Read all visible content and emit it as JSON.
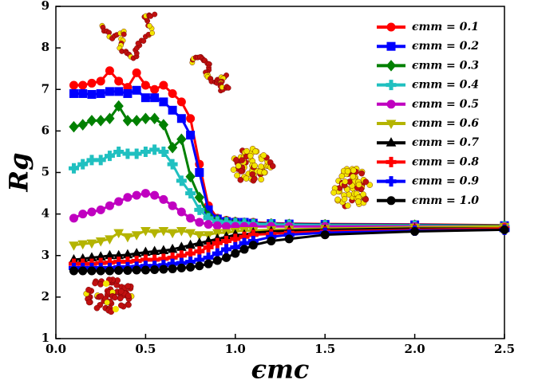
{
  "chart_data": {
    "type": "line",
    "x_label": "ϵmc",
    "y_label": "Rg",
    "x": [
      0.1,
      0.15,
      0.2,
      0.25,
      0.3,
      0.35,
      0.4,
      0.45,
      0.5,
      0.55,
      0.6,
      0.65,
      0.7,
      0.75,
      0.8,
      0.85,
      0.9,
      0.95,
      1.0,
      1.05,
      1.1,
      1.2,
      1.3,
      1.5,
      2.0,
      2.5
    ],
    "xlim": [
      0,
      2.5
    ],
    "ylim": [
      1,
      9
    ],
    "xticks": [
      {
        "value": 0,
        "label": "0.0"
      },
      0.5,
      {
        "value": 1,
        "label": "1.0"
      },
      1.5,
      {
        "value": 2,
        "label": "2.0"
      },
      2.5
    ],
    "yticks": [
      1,
      2,
      3,
      4,
      5,
      6,
      7,
      8,
      9
    ],
    "legend_position": "upper right",
    "series": [
      {
        "name": "ϵmm = 0.1",
        "color": "#ff0000",
        "marker": "circle",
        "values": [
          7.1,
          7.1,
          7.15,
          7.2,
          7.45,
          7.2,
          7.05,
          7.4,
          7.1,
          7.0,
          7.1,
          6.9,
          6.7,
          6.3,
          5.2,
          4.2,
          3.9,
          3.85,
          3.82,
          3.8,
          3.8,
          3.78,
          3.77,
          3.76,
          3.75,
          3.73
        ]
      },
      {
        "name": "ϵmm = 0.2",
        "color": "#0000ff",
        "marker": "square",
        "values": [
          6.9,
          6.9,
          6.88,
          6.9,
          6.95,
          6.95,
          6.9,
          6.98,
          6.8,
          6.8,
          6.7,
          6.5,
          6.3,
          5.9,
          5.0,
          4.1,
          3.88,
          3.82,
          3.8,
          3.8,
          3.78,
          3.77,
          3.76,
          3.75,
          3.74,
          3.72
        ]
      },
      {
        "name": "ϵmm = 0.3",
        "color": "#008000",
        "marker": "diamond",
        "values": [
          6.1,
          6.15,
          6.25,
          6.25,
          6.3,
          6.6,
          6.25,
          6.25,
          6.3,
          6.3,
          6.15,
          5.6,
          5.8,
          4.9,
          4.4,
          3.95,
          3.85,
          3.82,
          3.8,
          3.78,
          3.77,
          3.76,
          3.75,
          3.74,
          3.73,
          3.72
        ]
      },
      {
        "name": "ϵmm = 0.4",
        "color": "#20c0c0",
        "marker": "plus",
        "values": [
          5.1,
          5.2,
          5.3,
          5.3,
          5.4,
          5.5,
          5.45,
          5.45,
          5.5,
          5.55,
          5.5,
          5.2,
          4.8,
          4.5,
          4.1,
          3.9,
          3.82,
          3.8,
          3.78,
          3.77,
          3.76,
          3.75,
          3.74,
          3.73,
          3.72,
          3.7
        ]
      },
      {
        "name": "ϵmm = 0.5",
        "color": "#c000c0",
        "marker": "circle",
        "values": [
          3.9,
          4.0,
          4.05,
          4.1,
          4.2,
          4.3,
          4.4,
          4.45,
          4.5,
          4.45,
          4.35,
          4.2,
          4.05,
          3.9,
          3.8,
          3.75,
          3.72,
          3.7,
          3.7,
          3.7,
          3.7,
          3.7,
          3.7,
          3.7,
          3.7,
          3.7
        ]
      },
      {
        "name": "ϵmm = 0.6",
        "color": "#b4b400",
        "marker": "triangle-down",
        "values": [
          3.25,
          3.28,
          3.3,
          3.35,
          3.4,
          3.55,
          3.45,
          3.5,
          3.6,
          3.55,
          3.6,
          3.55,
          3.6,
          3.55,
          3.5,
          3.5,
          3.55,
          3.55,
          3.58,
          3.6,
          3.6,
          3.62,
          3.63,
          3.65,
          3.68,
          3.7
        ]
      },
      {
        "name": "ϵmm = 0.7",
        "color": "#000000",
        "marker": "triangle-up",
        "values": [
          2.9,
          2.92,
          2.95,
          2.97,
          3.0,
          3.0,
          3.02,
          3.05,
          3.08,
          3.1,
          3.12,
          3.15,
          3.2,
          3.25,
          3.3,
          3.35,
          3.4,
          3.45,
          3.5,
          3.5,
          3.55,
          3.58,
          3.6,
          3.62,
          3.65,
          3.65
        ]
      },
      {
        "name": "ϵmm = 0.8",
        "color": "#ff0000",
        "marker": "plus",
        "values": [
          2.8,
          2.8,
          2.8,
          2.82,
          2.83,
          2.85,
          2.85,
          2.87,
          2.9,
          2.9,
          2.92,
          2.95,
          3.0,
          3.05,
          3.1,
          3.2,
          3.3,
          3.35,
          3.4,
          3.45,
          3.5,
          3.52,
          3.55,
          3.58,
          3.62,
          3.65
        ]
      },
      {
        "name": "ϵmm = 0.9",
        "color": "#0000ff",
        "marker": "plus",
        "values": [
          2.7,
          2.7,
          2.7,
          2.7,
          2.7,
          2.72,
          2.72,
          2.73,
          2.75,
          2.75,
          2.77,
          2.8,
          2.82,
          2.85,
          2.9,
          2.95,
          3.05,
          3.15,
          3.2,
          3.3,
          3.35,
          3.45,
          3.5,
          3.55,
          3.6,
          3.62
        ]
      },
      {
        "name": "ϵmm = 1.0",
        "color": "#000000",
        "marker": "circle",
        "values": [
          2.63,
          2.63,
          2.63,
          2.63,
          2.63,
          2.64,
          2.64,
          2.65,
          2.65,
          2.66,
          2.67,
          2.68,
          2.7,
          2.72,
          2.75,
          2.8,
          2.88,
          2.95,
          3.05,
          3.15,
          3.25,
          3.35,
          3.4,
          3.5,
          3.58,
          3.62
        ]
      }
    ]
  }
}
